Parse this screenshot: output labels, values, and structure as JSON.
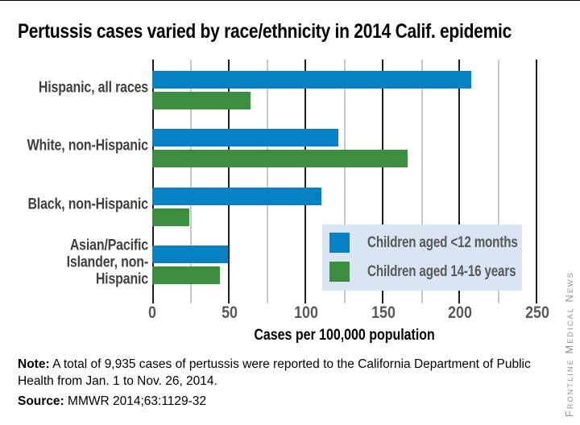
{
  "title": "Pertussis cases varied by race/ethnicity in 2014 Calif. epidemic",
  "chart_data": {
    "type": "bar",
    "orientation": "horizontal",
    "title": "Pertussis cases varied by race/ethnicity in 2014 Calif. epidemic",
    "categories": [
      "Hispanic, all races",
      "White, non-Hispanic",
      "Black, non-Hispanic",
      "Asian/Pacific Islander, non-Hispanic"
    ],
    "series": [
      {
        "name": "Children aged <12 months",
        "color": "#0681c4",
        "values": [
          207,
          121,
          110,
          49
        ]
      },
      {
        "name": "Children aged 14-16 years",
        "color": "#3a8e3d",
        "values": [
          64,
          166,
          24,
          44
        ]
      }
    ],
    "xlabel": "Cases per 100,000 population",
    "ylabel": "",
    "xlim": [
      0,
      250
    ],
    "x_major_ticks": [
      0,
      50,
      100,
      150,
      200,
      250
    ],
    "x_minor_ticks": [
      25,
      75,
      125,
      175,
      225
    ],
    "grid": "vertical, major dark / minor light gray",
    "legend_position": "inside-lower-right",
    "legend_background": "#d9e5f2"
  },
  "note": {
    "label": "Note:",
    "line1": "A total of 9,935 cases of pertussis were reported to the California Department of",
    "line2": "Public Health from Jan. 1 to Nov. 26, 2014."
  },
  "source": {
    "label": "Source:",
    "text": "MMWR 2014;63:1129-32"
  },
  "credit": "Frontline Medical News",
  "colors": {
    "bar_blue": "#0681c4",
    "bar_green": "#3a8e3d",
    "grid_major": "#1e1e1c",
    "grid_minor": "#c8c9cb",
    "tick_label": "#58595b",
    "category_label": "#3f4041",
    "legend_bg": "#d9e5f2",
    "credit_gray": "#8f9193"
  }
}
